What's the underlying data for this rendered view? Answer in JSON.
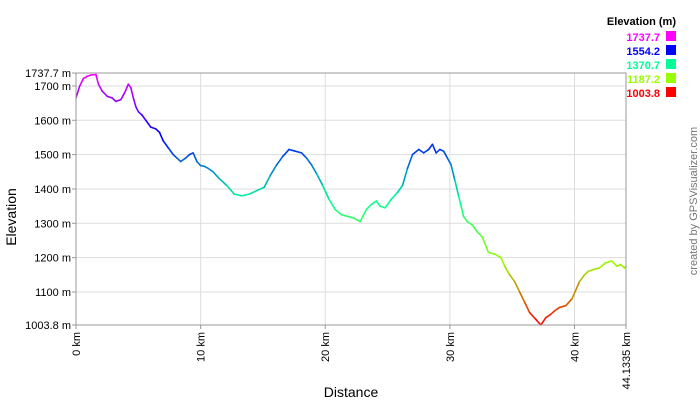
{
  "chart_data": {
    "type": "line",
    "xlabel": "Distance",
    "ylabel": "Elevation",
    "xlim": [
      0,
      44.1335
    ],
    "ylim": [
      1003.8,
      1737.7
    ],
    "grid": true,
    "x_ticks": [
      {
        "value": 0,
        "label": "0 km"
      },
      {
        "value": 10,
        "label": "10 km"
      },
      {
        "value": 20,
        "label": "20 km"
      },
      {
        "value": 30,
        "label": "30 km"
      },
      {
        "value": 40,
        "label": "40 km"
      },
      {
        "value": 44.1335,
        "label": "44.1335 km"
      }
    ],
    "y_ticks": [
      {
        "value": 1737.7,
        "label": "1737.7 m"
      },
      {
        "value": 1700,
        "label": "1700 m"
      },
      {
        "value": 1600,
        "label": "1600 m"
      },
      {
        "value": 1500,
        "label": "1500 m"
      },
      {
        "value": 1400,
        "label": "1400 m"
      },
      {
        "value": 1300,
        "label": "1300 m"
      },
      {
        "value": 1200,
        "label": "1200 m"
      },
      {
        "value": 1100,
        "label": "1100 m"
      },
      {
        "value": 1003.8,
        "label": "1003.8 m"
      }
    ],
    "legend": {
      "title": "Elevation (m)",
      "placement": "top-right",
      "entries": [
        {
          "label": "1737.7",
          "color": "#ff00ff"
        },
        {
          "label": "1554.2",
          "color": "#0000ff"
        },
        {
          "label": "1370.7",
          "color": "#00ff99"
        },
        {
          "label": "1187.2",
          "color": "#99ff00"
        },
        {
          "label": "1003.8",
          "color": "#ff0000"
        }
      ]
    },
    "credit": "created by GPSVisualizer.com",
    "series": [
      {
        "x": [
          0,
          0.3,
          0.6,
          0.9,
          1.2,
          1.6,
          1.8,
          2.1,
          2.5,
          2.9,
          3.2,
          3.6,
          3.9,
          4.2,
          4.4,
          4.6,
          4.8,
          5.0,
          5.3,
          5.6,
          6.0,
          6.4,
          6.7,
          7.0,
          7.4,
          7.8,
          8.1,
          8.4,
          8.8,
          9.1,
          9.4,
          9.7,
          10.0,
          10.3,
          10.6,
          11.0,
          11.5,
          12.1,
          12.7,
          13.3,
          13.9,
          14.5,
          15.1,
          15.6,
          16.1,
          16.6,
          17.1,
          17.6,
          18.1,
          18.5,
          18.9,
          19.3,
          19.8,
          20.3,
          20.8,
          21.3,
          21.8,
          22.3,
          22.8,
          23.3,
          23.7,
          24.1,
          24.4,
          24.8,
          25.3,
          25.8,
          26.2,
          26.6,
          27.0,
          27.5,
          27.9,
          28.3,
          28.6,
          28.9,
          29.2,
          29.5,
          29.8,
          30.1,
          30.4,
          30.7,
          30.9,
          31.1,
          31.4,
          31.8,
          32.2,
          32.6,
          33.1,
          33.6,
          34.1,
          34.4,
          34.8,
          35.2,
          35.6,
          36.0,
          36.4,
          36.9,
          37.3,
          37.7,
          38.1,
          38.4,
          38.8,
          39.3,
          39.8,
          40.4,
          40.8,
          41.1,
          41.5,
          42.0,
          42.5,
          43.0,
          43.4,
          43.7,
          44.0,
          44.1335
        ],
        "y": [
          1665,
          1700,
          1722,
          1728,
          1732,
          1733,
          1705,
          1685,
          1670,
          1665,
          1655,
          1660,
          1680,
          1705,
          1695,
          1665,
          1640,
          1625,
          1615,
          1600,
          1580,
          1575,
          1565,
          1540,
          1520,
          1500,
          1490,
          1480,
          1490,
          1500,
          1505,
          1480,
          1468,
          1466,
          1460,
          1450,
          1430,
          1410,
          1385,
          1380,
          1385,
          1395,
          1405,
          1440,
          1470,
          1495,
          1515,
          1510,
          1505,
          1490,
          1470,
          1445,
          1410,
          1370,
          1340,
          1325,
          1320,
          1315,
          1305,
          1340,
          1355,
          1365,
          1350,
          1345,
          1370,
          1390,
          1410,
          1460,
          1500,
          1515,
          1505,
          1515,
          1530,
          1505,
          1515,
          1510,
          1490,
          1470,
          1425,
          1380,
          1350,
          1320,
          1305,
          1295,
          1275,
          1260,
          1215,
          1210,
          1200,
          1175,
          1150,
          1130,
          1100,
          1070,
          1040,
          1020,
          1003.8,
          1025,
          1035,
          1045,
          1055,
          1060,
          1080,
          1130,
          1150,
          1160,
          1165,
          1170,
          1185,
          1190,
          1175,
          1180,
          1170,
          1175
        ]
      }
    ]
  }
}
